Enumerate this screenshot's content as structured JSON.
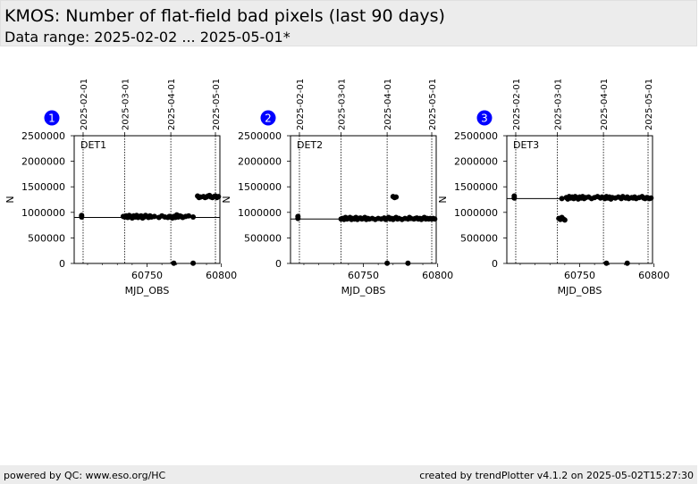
{
  "header": {
    "title": "KMOS: Number of flat-field bad pixels (last 90 days)",
    "subtitle": "Data range: 2025-02-02 ... 2025-05-01*"
  },
  "footer": {
    "left": "powered by QC: www.eso.org/HC",
    "right": "created by trendPlotter v4.1.2 on 2025-05-02T15:27:30"
  },
  "colors": {
    "badge": "#0000ff",
    "points": "#000000",
    "header_bg": "#ececec"
  },
  "chart_data": [
    {
      "type": "scatter",
      "panel_number": "1",
      "label": "DET1",
      "xlabel": "MJD_OBS",
      "ylabel": "N",
      "xlim": [
        60701.0,
        60799.0
      ],
      "ylim": [
        0,
        2500000
      ],
      "x_ticks": [
        60750,
        60800
      ],
      "y_ticks": [
        0,
        500000,
        1000000,
        1500000,
        2000000,
        2500000
      ],
      "top_axis_dates": [
        "2025-02-01",
        "2025-03-01",
        "2025-04-01",
        "2025-05-01"
      ],
      "date_lines_mjd": [
        60707,
        60735,
        60766,
        60796
      ],
      "reference_line": 900000,
      "points": [
        [
          60706,
          940000
        ],
        [
          60706,
          910000
        ],
        [
          60734,
          920000
        ],
        [
          60735,
          910000
        ],
        [
          60736,
          930000
        ],
        [
          60737,
          900000
        ],
        [
          60738,
          940000
        ],
        [
          60739,
          920000
        ],
        [
          60740,
          890000
        ],
        [
          60741,
          930000
        ],
        [
          60742,
          910000
        ],
        [
          60743,
          940000
        ],
        [
          60744,
          900000
        ],
        [
          60745,
          920000
        ],
        [
          60746,
          930000
        ],
        [
          60747,
          890000
        ],
        [
          60748,
          910000
        ],
        [
          60749,
          940000
        ],
        [
          60750,
          920000
        ],
        [
          60751,
          900000
        ],
        [
          60752,
          930000
        ],
        [
          60753,
          910000
        ],
        [
          60755,
          920000
        ],
        [
          60758,
          900000
        ],
        [
          60760,
          930000
        ],
        [
          60762,
          910000
        ],
        [
          60764,
          900000
        ],
        [
          60765,
          920000
        ],
        [
          60766,
          910000
        ],
        [
          60767,
          890000
        ],
        [
          60768,
          920000
        ],
        [
          60769,
          900000
        ],
        [
          60770,
          950000
        ],
        [
          60771,
          910000
        ],
        [
          60772,
          930000
        ],
        [
          60773,
          920000
        ],
        [
          60774,
          900000
        ],
        [
          60776,
          920000
        ],
        [
          60778,
          930000
        ],
        [
          60781,
          910000
        ],
        [
          60768,
          5000
        ],
        [
          60781,
          5000
        ],
        [
          60784,
          1320000
        ],
        [
          60785,
          1290000
        ],
        [
          60786,
          1300000
        ],
        [
          60788,
          1310000
        ],
        [
          60789,
          1290000
        ],
        [
          60790,
          1300000
        ],
        [
          60791,
          1320000
        ],
        [
          60792,
          1330000
        ],
        [
          60793,
          1300000
        ],
        [
          60794,
          1290000
        ],
        [
          60795,
          1310000
        ],
        [
          60796,
          1320000
        ],
        [
          60797,
          1290000
        ],
        [
          60798,
          1310000
        ]
      ]
    },
    {
      "type": "scatter",
      "panel_number": "2",
      "label": "DET2",
      "xlabel": "MJD_OBS",
      "ylabel": "N",
      "xlim": [
        60701.0,
        60799.0
      ],
      "ylim": [
        0,
        2500000
      ],
      "x_ticks": [
        60750,
        60800
      ],
      "y_ticks": [
        0,
        500000,
        1000000,
        1500000,
        2000000,
        2500000
      ],
      "top_axis_dates": [
        "2025-02-01",
        "2025-03-01",
        "2025-04-01",
        "2025-05-01"
      ],
      "date_lines_mjd": [
        60707,
        60735,
        60766,
        60796
      ],
      "reference_line": 870000,
      "points": [
        [
          60706,
          920000
        ],
        [
          60706,
          880000
        ],
        [
          60735,
          870000
        ],
        [
          60736,
          880000
        ],
        [
          60737,
          860000
        ],
        [
          60738,
          900000
        ],
        [
          60739,
          870000
        ],
        [
          60740,
          880000
        ],
        [
          60741,
          900000
        ],
        [
          60742,
          860000
        ],
        [
          60743,
          880000
        ],
        [
          60744,
          870000
        ],
        [
          60745,
          900000
        ],
        [
          60746,
          860000
        ],
        [
          60747,
          880000
        ],
        [
          60748,
          890000
        ],
        [
          60749,
          870000
        ],
        [
          60750,
          880000
        ],
        [
          60751,
          900000
        ],
        [
          60752,
          860000
        ],
        [
          60753,
          880000
        ],
        [
          60754,
          870000
        ],
        [
          60756,
          880000
        ],
        [
          60758,
          860000
        ],
        [
          60760,
          880000
        ],
        [
          60762,
          870000
        ],
        [
          60764,
          890000
        ],
        [
          60765,
          860000
        ],
        [
          60766,
          880000
        ],
        [
          60767,
          900000
        ],
        [
          60768,
          870000
        ],
        [
          60769,
          880000
        ],
        [
          60770,
          860000
        ],
        [
          60771,
          880000
        ],
        [
          60772,
          900000
        ],
        [
          60773,
          870000
        ],
        [
          60774,
          880000
        ],
        [
          60776,
          860000
        ],
        [
          60778,
          880000
        ],
        [
          60780,
          870000
        ],
        [
          60781,
          900000
        ],
        [
          60782,
          880000
        ],
        [
          60784,
          870000
        ],
        [
          60785,
          880000
        ],
        [
          60786,
          890000
        ],
        [
          60787,
          870000
        ],
        [
          60788,
          880000
        ],
        [
          60789,
          860000
        ],
        [
          60790,
          880000
        ],
        [
          60791,
          900000
        ],
        [
          60792,
          870000
        ],
        [
          60793,
          880000
        ],
        [
          60794,
          870000
        ],
        [
          60795,
          880000
        ],
        [
          60796,
          870000
        ],
        [
          60797,
          880000
        ],
        [
          60798,
          870000
        ],
        [
          60770,
          1310000
        ],
        [
          60771,
          1290000
        ],
        [
          60772,
          1300000
        ],
        [
          60766,
          5000
        ],
        [
          60780,
          5000
        ]
      ]
    },
    {
      "type": "scatter",
      "panel_number": "3",
      "label": "DET3",
      "xlabel": "MJD_OBS",
      "ylabel": "N",
      "xlim": [
        60701.0,
        60799.0
      ],
      "ylim": [
        0,
        2500000
      ],
      "x_ticks": [
        60750,
        60800
      ],
      "y_ticks": [
        0,
        500000,
        1000000,
        1500000,
        2000000,
        2500000
      ],
      "top_axis_dates": [
        "2025-02-01",
        "2025-03-01",
        "2025-04-01",
        "2025-05-01"
      ],
      "date_lines_mjd": [
        60707,
        60735,
        60766,
        60796
      ],
      "reference_line": 1270000,
      "points": [
        [
          60706,
          1320000
        ],
        [
          60706,
          1280000
        ],
        [
          60736,
          880000
        ],
        [
          60737,
          860000
        ],
        [
          60738,
          900000
        ],
        [
          60739,
          870000
        ],
        [
          60740,
          850000
        ],
        [
          60738,
          1270000
        ],
        [
          60741,
          1290000
        ],
        [
          60742,
          1260000
        ],
        [
          60743,
          1310000
        ],
        [
          60744,
          1280000
        ],
        [
          60745,
          1300000
        ],
        [
          60746,
          1270000
        ],
        [
          60747,
          1310000
        ],
        [
          60748,
          1290000
        ],
        [
          60749,
          1260000
        ],
        [
          60750,
          1300000
        ],
        [
          60751,
          1280000
        ],
        [
          60752,
          1310000
        ],
        [
          60753,
          1270000
        ],
        [
          60754,
          1290000
        ],
        [
          60756,
          1300000
        ],
        [
          60758,
          1270000
        ],
        [
          60760,
          1290000
        ],
        [
          60762,
          1310000
        ],
        [
          60764,
          1280000
        ],
        [
          60765,
          1300000
        ],
        [
          60767,
          1270000
        ],
        [
          60768,
          1310000
        ],
        [
          60769,
          1280000
        ],
        [
          60770,
          1300000
        ],
        [
          60771,
          1260000
        ],
        [
          60772,
          1290000
        ],
        [
          60774,
          1280000
        ],
        [
          60776,
          1300000
        ],
        [
          60778,
          1270000
        ],
        [
          60779,
          1310000
        ],
        [
          60781,
          1280000
        ],
        [
          60782,
          1300000
        ],
        [
          60783,
          1270000
        ],
        [
          60785,
          1290000
        ],
        [
          60786,
          1280000
        ],
        [
          60787,
          1300000
        ],
        [
          60788,
          1270000
        ],
        [
          60790,
          1290000
        ],
        [
          60792,
          1310000
        ],
        [
          60793,
          1280000
        ],
        [
          60794,
          1270000
        ],
        [
          60795,
          1290000
        ],
        [
          60796,
          1280000
        ],
        [
          60797,
          1270000
        ],
        [
          60798,
          1280000
        ],
        [
          60768,
          5000
        ],
        [
          60782,
          5000
        ]
      ]
    }
  ]
}
